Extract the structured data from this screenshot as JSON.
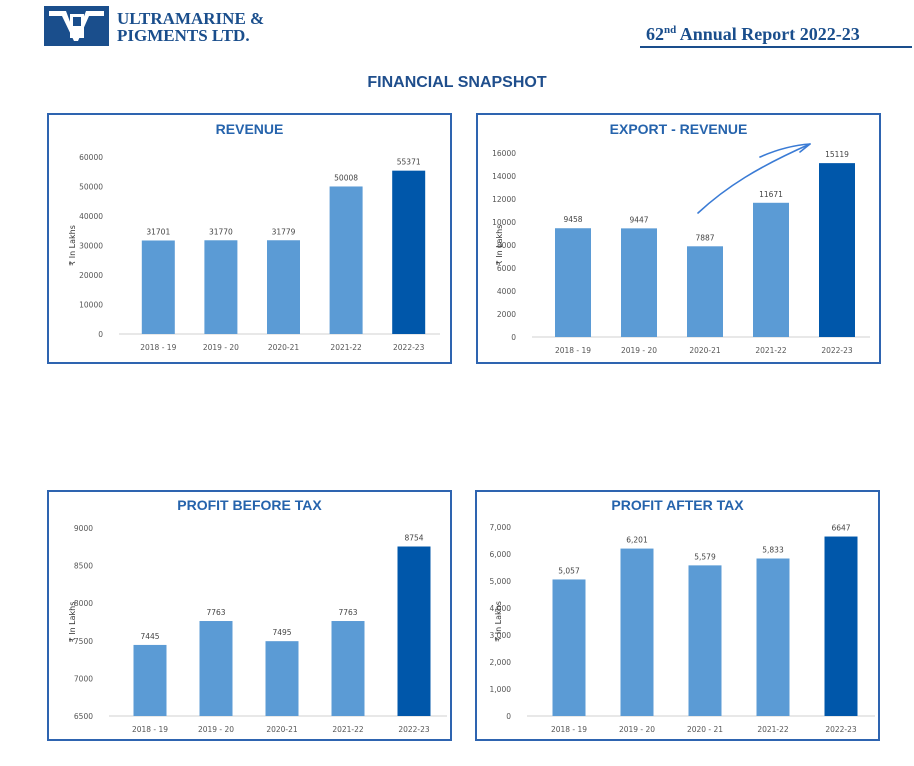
{
  "header": {
    "company_line1": "ULTRAMARINE &",
    "company_line2": "PIGMENTS LTD.",
    "report_number": "62",
    "report_suffix": "nd",
    "report_rest": " Annual Report 2022-23",
    "logo_glyph": "UP"
  },
  "page_title": "FINANCIAL SNAPSHOT",
  "colors": {
    "bar": "#5b9bd5",
    "highlight": "#0057aa",
    "frame": "#2e64b0",
    "title": "#2563ac",
    "annotation": "#3a7bd5"
  },
  "chart_data": [
    {
      "type": "bar",
      "title": "REVENUE",
      "ylabel": "₹ In Lakhs",
      "categories": [
        "2018 - 19",
        "2019 - 20",
        "2020-21",
        "2021-22",
        "2022-23"
      ],
      "values": [
        31701,
        31770,
        31779,
        50008,
        55371
      ],
      "value_labels": [
        "31701",
        "31770",
        "31779",
        "50008",
        "55371"
      ],
      "ylim": [
        0,
        60000
      ],
      "yticks": [
        0,
        10000,
        20000,
        30000,
        40000,
        50000,
        60000
      ],
      "ytick_labels": [
        "0",
        "10000",
        "20000",
        "30000",
        "40000",
        "50000",
        "60000"
      ],
      "highlight_index": 4,
      "grid": false
    },
    {
      "type": "bar",
      "title": "EXPORT - REVENUE",
      "ylabel": "₹ In Lakhs",
      "categories": [
        "2018 - 19",
        "2019 - 20",
        "2020-21",
        "2021-22",
        "2022-23"
      ],
      "values": [
        9458,
        9447,
        7887,
        11671,
        15119
      ],
      "value_labels": [
        "9458",
        "9447",
        "7887",
        "11671",
        "15119"
      ],
      "ylim": [
        0,
        16000
      ],
      "yticks": [
        0,
        2000,
        4000,
        6000,
        8000,
        10000,
        12000,
        14000,
        16000
      ],
      "ytick_labels": [
        "0",
        "2000",
        "4000",
        "6000",
        "8000",
        "10000",
        "12000",
        "14000",
        "16000"
      ],
      "highlight_index": 4,
      "grid": false,
      "annotation": "hand-drawn upward arrow"
    },
    {
      "type": "bar",
      "title": "PROFIT BEFORE TAX",
      "ylabel": "₹ In Lakhs",
      "categories": [
        "2018 - 19",
        "2019 - 20",
        "2020-21",
        "2021-22",
        "2022-23"
      ],
      "values": [
        7445,
        7763,
        7495,
        7763,
        8754
      ],
      "value_labels": [
        "7445",
        "7763",
        "7495",
        "7763",
        "8754"
      ],
      "ylim": [
        6500,
        9000
      ],
      "yticks": [
        6500,
        7000,
        7500,
        8000,
        8500,
        9000
      ],
      "ytick_labels": [
        "6500",
        "7000",
        "7500",
        "8000",
        "8500",
        "9000"
      ],
      "highlight_index": 4,
      "grid": false
    },
    {
      "type": "bar",
      "title": "PROFIT AFTER TAX",
      "ylabel": "₹ In Lakhs",
      "categories": [
        "2018 - 19",
        "2019 - 20",
        "2020 - 21",
        "2021-22",
        "2022-23"
      ],
      "values": [
        5057,
        6201,
        5579,
        5833,
        6647
      ],
      "value_labels": [
        "5,057",
        "6,201",
        "5,579",
        "5,833",
        "6647"
      ],
      "ylim": [
        0,
        7000
      ],
      "yticks": [
        0,
        1000,
        2000,
        3000,
        4000,
        5000,
        6000,
        7000
      ],
      "ytick_labels": [
        "0",
        "1,000",
        "2,000",
        "3,000",
        "4,000",
        "5,000",
        "6,000",
        "7,000"
      ],
      "highlight_index": 4,
      "grid": false
    }
  ]
}
